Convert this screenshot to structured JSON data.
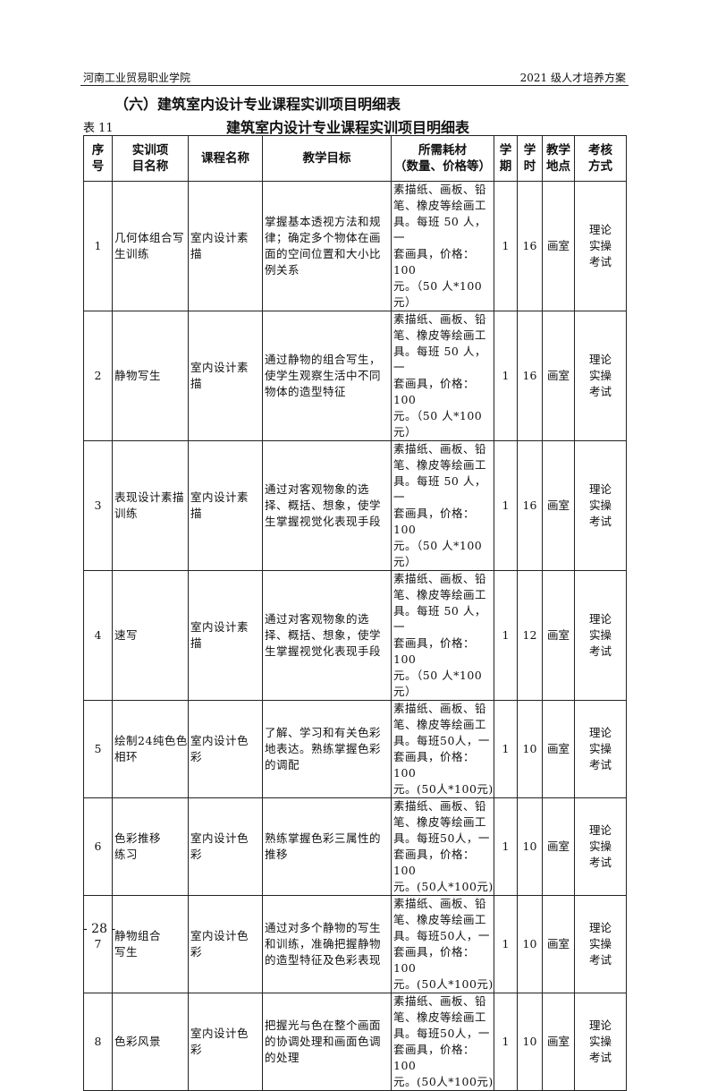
{
  "header": {
    "left": "河南工业贸易职业学院",
    "right": "2021 级人才培养方案"
  },
  "section_title": "（六）建筑室内设计专业课程实训项目明细表",
  "table_number": "表 11",
  "table_title": "建筑室内设计专业课程实训项目明细表",
  "columns": [
    "序\n号",
    "实训项\n目名称",
    "课程名称",
    "教学目标",
    "所需耗材\n（数量、价格等）",
    "学\n期",
    "学\n时",
    "教学\n地点",
    "考核\n方式"
  ],
  "rows": [
    {
      "no": "1",
      "project": "几何体组合写\n生训练",
      "course": "室内设计素\n描",
      "goal": "掌握基本透视方法和规\n律；确定多个物体在画\n面的空间位置和大小比\n例关系",
      "materials": "素描纸、画板、铅\n笔、橡皮等绘画工\n具。每班 50 人，一\n套画具，价格：100\n元。（50 人*100\n元）",
      "term": "1",
      "hours": "16",
      "place": "画室",
      "exam": "理论\n实操\n考试"
    },
    {
      "no": "2",
      "project": "静物写生",
      "course": "室内设计素\n描",
      "goal": "通过静物的组合写生，\n使学生观察生活中不同\n物体的造型特征",
      "materials": "素描纸、画板、铅\n笔、橡皮等绘画工\n具。每班 50 人，一\n套画具，价格：100\n元。（50 人*100\n元）",
      "term": "1",
      "hours": "16",
      "place": "画室",
      "exam": "理论\n实操\n考试"
    },
    {
      "no": "3",
      "project": "表现设计素描\n训练",
      "course": "室内设计素\n描",
      "goal": "通过对客观物象的选\n择、概括、想象，使学\n生掌握视觉化表现手段",
      "materials": "素描纸、画板、铅\n笔、橡皮等绘画工\n具。每班 50 人，一\n套画具，价格：100\n元。（50 人*100\n元）",
      "term": "1",
      "hours": "16",
      "place": "画室",
      "exam": "理论\n实操\n考试"
    },
    {
      "no": "4",
      "project": "速写",
      "course": "室内设计素\n描",
      "goal": "通过对客观物象的选\n择、概括、想象，使学\n生掌握视觉化表现手段",
      "materials": "素描纸、画板、铅\n笔、橡皮等绘画工\n具。每班 50 人，一\n套画具，价格：100\n元。（50 人*100\n元）",
      "term": "1",
      "hours": "12",
      "place": "画室",
      "exam": "理论\n实操\n考试"
    },
    {
      "no": "5",
      "project": "绘制24纯色色\n相环",
      "course": "室内设计色\n彩",
      "goal": "了解、学习和有关色彩\n地表达。熟练掌握色彩\n的调配",
      "materials": "素描纸、画板、铅\n笔、橡皮等绘画工\n具。每班50人，一\n套画具，价格：100\n元。(50人*100元)",
      "term": "1",
      "hours": "10",
      "place": "画室",
      "exam": "理论\n实操\n考试"
    },
    {
      "no": "6",
      "project": "色彩推移\n练习",
      "course": "室内设计色\n彩",
      "goal": "熟练掌握色彩三属性的\n推移",
      "materials": "素描纸、画板、铅\n笔、橡皮等绘画工\n具。每班50人，一\n套画具，价格：100\n元。(50人*100元)",
      "term": "1",
      "hours": "10",
      "place": "画室",
      "exam": "理论\n实操\n考试"
    },
    {
      "no": "7",
      "project": "静物组合\n写生",
      "course": "室内设计色\n彩",
      "goal": "通过对多个静物的写生\n和训练，准确把握静物\n的造型特征及色彩表现",
      "materials": "素描纸、画板、铅\n笔、橡皮等绘画工\n具。每班50人，一\n套画具，价格：100\n元。(50人*100元)",
      "term": "1",
      "hours": "10",
      "place": "画室",
      "exam": "理论\n实操\n考试"
    },
    {
      "no": "8",
      "project": "色彩风景",
      "course": "室内设计色\n彩",
      "goal": "把握光与色在整个画面\n的协调处理和画面色调\n的处理",
      "materials": "素描纸、画板、铅\n笔、橡皮等绘画工\n具。每班50人，一\n套画具，价格：100\n元。(50人*100元)",
      "term": "1",
      "hours": "10",
      "place": "画室",
      "exam": "理论\n实操\n考试"
    }
  ],
  "footer": {
    "page": "- 28 -"
  }
}
